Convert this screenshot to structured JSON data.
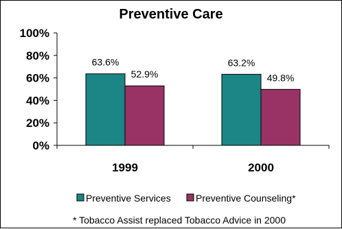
{
  "chart_data": {
    "type": "bar",
    "title": "Preventive Care",
    "categories": [
      "1999",
      "2000"
    ],
    "series": [
      {
        "name": "Preventive Services",
        "values": [
          63.6,
          63.2
        ],
        "labels": [
          "63.6%",
          "63.2%"
        ],
        "color": "#1c8585"
      },
      {
        "name": "Preventive Counseling*",
        "values": [
          52.9,
          49.8
        ],
        "labels": [
          "52.9%",
          "49.8%"
        ],
        "color": "#993366"
      }
    ],
    "ylim": [
      0,
      100
    ],
    "yticks": [
      "0%",
      "20%",
      "40%",
      "60%",
      "80%",
      "100%"
    ],
    "grid": false,
    "legend_position": "bottom",
    "footnote": "* Tobacco Assist replaced Tobacco Advice in 2000"
  }
}
